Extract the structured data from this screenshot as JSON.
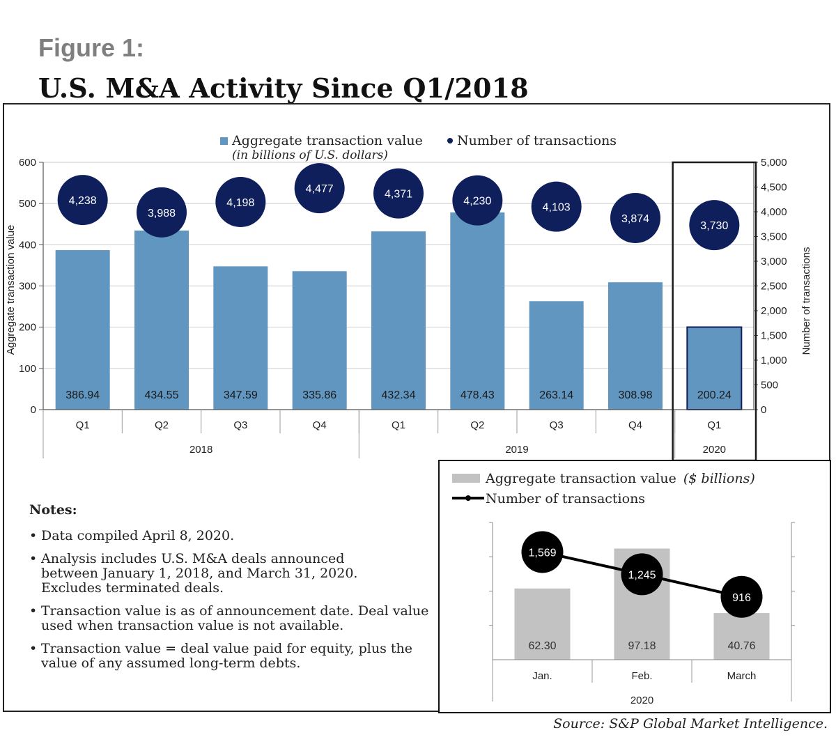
{
  "figure_label": "Figure 1:",
  "figure_title": "U.S. M&A Activity Since Q1/2018",
  "source": "Source: S&P Global Market Intelligence.",
  "notes": {
    "heading": "Notes:",
    "items": [
      "Data compiled April 8, 2020.",
      "Analysis includes U.S. M&A deals announced between January 1, 2018, and March 31, 2020. Excludes terminated deals.",
      "Transaction value is as of announcement date. Deal value used when transaction value is not available.",
      "Transaction value = deal value paid for equity, plus the value of any assumed long-term debts."
    ]
  },
  "colors": {
    "bar": "#6096c0",
    "bubble": "#0f1f5c",
    "inset_bar": "#c2c2c2",
    "inset_bubble": "#000000",
    "highlight_border": "#1a1a1a"
  },
  "chart_data": [
    {
      "type": "bar",
      "legend": {
        "bar_label": "Aggregate transaction value",
        "bar_sublabel": "(in billions of U.S. dollars)",
        "dot_label": "Number of transactions"
      },
      "ylabel_left": "Aggregate transaction value",
      "ylabel_right": "Number of transactions",
      "ylim_left": [
        0,
        600
      ],
      "ylim_right": [
        0,
        5000
      ],
      "yticks_left": [
        0,
        100,
        200,
        300,
        400,
        500,
        600
      ],
      "yticks_right": [
        "0",
        "500",
        "1,000",
        "1,500",
        "2,000",
        "2,500",
        "3,000",
        "3,500",
        "4,000",
        "4,500",
        "5,000"
      ],
      "categories": [
        "Q1",
        "Q2",
        "Q3",
        "Q4",
        "Q1",
        "Q2",
        "Q3",
        "Q4",
        "Q1"
      ],
      "years": [
        {
          "label": "2018",
          "count": 4
        },
        {
          "label": "2019",
          "count": 4
        },
        {
          "label": "2020",
          "count": 1
        }
      ],
      "values": [
        386.94,
        434.55,
        347.59,
        335.86,
        432.34,
        478.43,
        263.14,
        308.98,
        200.24
      ],
      "value_labels": [
        "386.94",
        "434.55",
        "347.59",
        "335.86",
        "432.34",
        "478.43",
        "263.14",
        "308.98",
        "200.24"
      ],
      "transactions": [
        4238,
        3988,
        4198,
        4477,
        4371,
        4230,
        4103,
        3874,
        3730
      ],
      "transaction_labels": [
        "4,238",
        "3,988",
        "4,198",
        "4,477",
        "4,371",
        "4,230",
        "4,103",
        "3,874",
        "3,730"
      ],
      "highlight_index": 8,
      "grid": true
    },
    {
      "type": "bar",
      "legend": {
        "bar_label": "Aggregate transaction value",
        "bar_unit": "($ billions)",
        "line_label": "Number of transactions"
      },
      "ylim_left": [
        0,
        120
      ],
      "ylim_right": [
        0,
        2000
      ],
      "categories": [
        "Jan.",
        "Feb.",
        "March"
      ],
      "group_label": "2020",
      "values": [
        62.3,
        97.18,
        40.76
      ],
      "value_labels": [
        "62.30",
        "97.18",
        "40.76"
      ],
      "transactions": [
        1569,
        1245,
        916
      ],
      "transaction_labels": [
        "1,569",
        "1,245",
        "916"
      ],
      "grid": false
    }
  ]
}
